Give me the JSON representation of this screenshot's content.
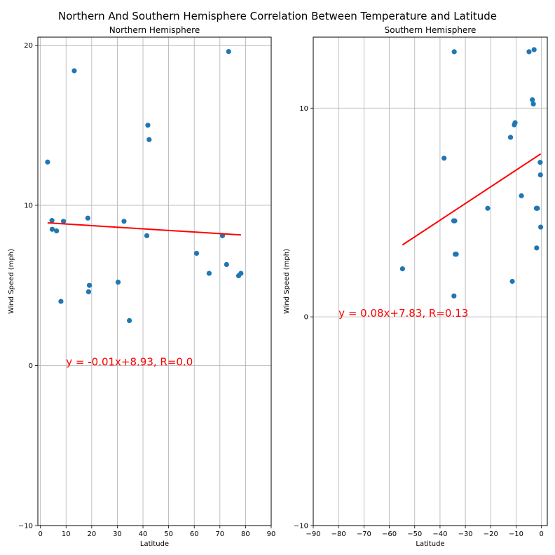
{
  "figure": {
    "title": "Northern And Southern Hemisphere Correlation Between Temperature and Latitude"
  },
  "chart_data": [
    {
      "type": "scatter",
      "title": "Northern Hemisphere",
      "xlabel": "Latitude",
      "ylabel": "Wind Speed (mph)",
      "xlim": [
        -1,
        90
      ],
      "ylim": [
        -10,
        20.5
      ],
      "xticks": [
        0,
        10,
        20,
        30,
        40,
        50,
        60,
        70,
        80,
        90
      ],
      "yticks": [
        -10,
        0,
        10,
        20
      ],
      "grid": true,
      "marker_color": "#1f77b4",
      "points": [
        {
          "x": 2.8,
          "y": 12.7
        },
        {
          "x": 4.5,
          "y": 9.05
        },
        {
          "x": 4.6,
          "y": 8.5
        },
        {
          "x": 6.3,
          "y": 8.4
        },
        {
          "x": 8.0,
          "y": 4.0
        },
        {
          "x": 9.0,
          "y": 9.0
        },
        {
          "x": 13.2,
          "y": 18.4
        },
        {
          "x": 18.5,
          "y": 9.2
        },
        {
          "x": 18.8,
          "y": 4.6
        },
        {
          "x": 19.1,
          "y": 5.0
        },
        {
          "x": 30.3,
          "y": 5.2
        },
        {
          "x": 32.6,
          "y": 9.0
        },
        {
          "x": 34.7,
          "y": 2.8
        },
        {
          "x": 41.5,
          "y": 8.1
        },
        {
          "x": 41.9,
          "y": 15.0
        },
        {
          "x": 42.4,
          "y": 14.1
        },
        {
          "x": 60.9,
          "y": 7.0
        },
        {
          "x": 65.8,
          "y": 5.75
        },
        {
          "x": 71.0,
          "y": 8.1
        },
        {
          "x": 72.6,
          "y": 6.3
        },
        {
          "x": 73.4,
          "y": 19.6
        },
        {
          "x": 77.3,
          "y": 5.6
        },
        {
          "x": 78.2,
          "y": 5.75
        }
      ],
      "regression": {
        "color": "#ff0000",
        "x_range": [
          2.8,
          78.2
        ],
        "slope": -0.01,
        "intercept": 8.93,
        "equation_label": "y = -0.01x+8.93, R=0.0",
        "label_at": {
          "x": 10,
          "y": 0
        }
      }
    },
    {
      "type": "scatter",
      "title": "Southern Hemisphere",
      "xlabel": "Latitude",
      "ylabel": "Wind Speed (mph)",
      "xlim": [
        -90,
        2.3
      ],
      "ylim": [
        -10,
        13.4
      ],
      "xticks": [
        -90,
        -80,
        -70,
        -60,
        -50,
        -40,
        -30,
        -20,
        -10,
        0
      ],
      "yticks": [
        -10,
        0,
        10
      ],
      "grid": true,
      "marker_color": "#1f77b4",
      "points": [
        {
          "x": -54.8,
          "y": 2.3
        },
        {
          "x": -38.4,
          "y": 7.6
        },
        {
          "x": -34.6,
          "y": 4.6
        },
        {
          "x": -34.2,
          "y": 4.6
        },
        {
          "x": -34.4,
          "y": 12.7
        },
        {
          "x": -34.0,
          "y": 3.0
        },
        {
          "x": -33.6,
          "y": 3.0
        },
        {
          "x": -34.5,
          "y": 1.0
        },
        {
          "x": -21.2,
          "y": 5.2
        },
        {
          "x": -12.2,
          "y": 8.6
        },
        {
          "x": -11.5,
          "y": 1.7
        },
        {
          "x": -10.7,
          "y": 9.2
        },
        {
          "x": -10.4,
          "y": 9.3
        },
        {
          "x": -7.9,
          "y": 5.8
        },
        {
          "x": -4.9,
          "y": 12.7
        },
        {
          "x": -3.6,
          "y": 10.4
        },
        {
          "x": -3.2,
          "y": 10.2
        },
        {
          "x": -2.9,
          "y": 12.8
        },
        {
          "x": -2.0,
          "y": 5.2
        },
        {
          "x": -1.6,
          "y": 5.2
        },
        {
          "x": -1.9,
          "y": 3.3
        },
        {
          "x": -0.5,
          "y": 7.4
        },
        {
          "x": -0.4,
          "y": 6.8
        },
        {
          "x": -0.3,
          "y": 4.3
        }
      ],
      "regression": {
        "color": "#ff0000",
        "x_range": [
          -54.8,
          -0.3
        ],
        "slope": 0.08,
        "intercept": 7.83,
        "equation_label": "y = 0.08x+7.83, R=0.13",
        "label_at": {
          "x": -80,
          "y": 0
        }
      }
    }
  ]
}
